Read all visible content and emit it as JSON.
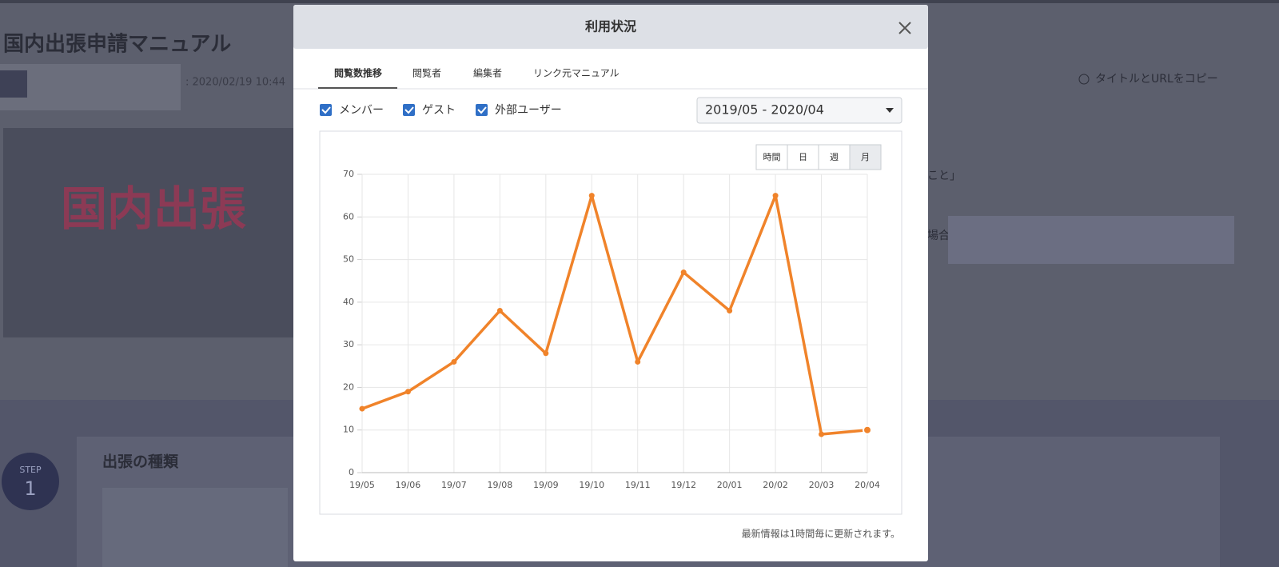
{
  "background": {
    "title": "国内出張申請マニュアル",
    "date": ": 2020/02/19 10:44",
    "copy": "タイトルとURLをコピー",
    "banner": "国内出張",
    "step_label": "STEP",
    "step_number": "1",
    "section": "出張の種類",
    "fragment1": "こと」",
    "fragment2": "場合("
  },
  "modal": {
    "title": "利用状況",
    "tabs": [
      "閲覧数推移",
      "閲覧者",
      "編集者",
      "リンク元マニュアル"
    ],
    "filters": [
      "メンバー",
      "ゲスト",
      "外部ユーザー"
    ],
    "period": "2019/05 - 2020/04",
    "granularity": [
      "時間",
      "日",
      "週",
      "月"
    ],
    "footer": "最新情報は1時間毎に更新されます。"
  },
  "chart_data": {
    "type": "line",
    "categories": [
      "19/05",
      "19/06",
      "19/07",
      "19/08",
      "19/09",
      "19/10",
      "19/11",
      "19/12",
      "20/01",
      "20/02",
      "20/03",
      "20/04"
    ],
    "values": [
      15,
      19,
      26,
      38,
      28,
      65,
      26,
      47,
      38,
      65,
      9,
      10
    ],
    "color": "#f0832a",
    "ylim": [
      0,
      70
    ],
    "yticks": [
      0,
      10,
      20,
      30,
      40,
      50,
      60,
      70
    ],
    "grid": true
  }
}
